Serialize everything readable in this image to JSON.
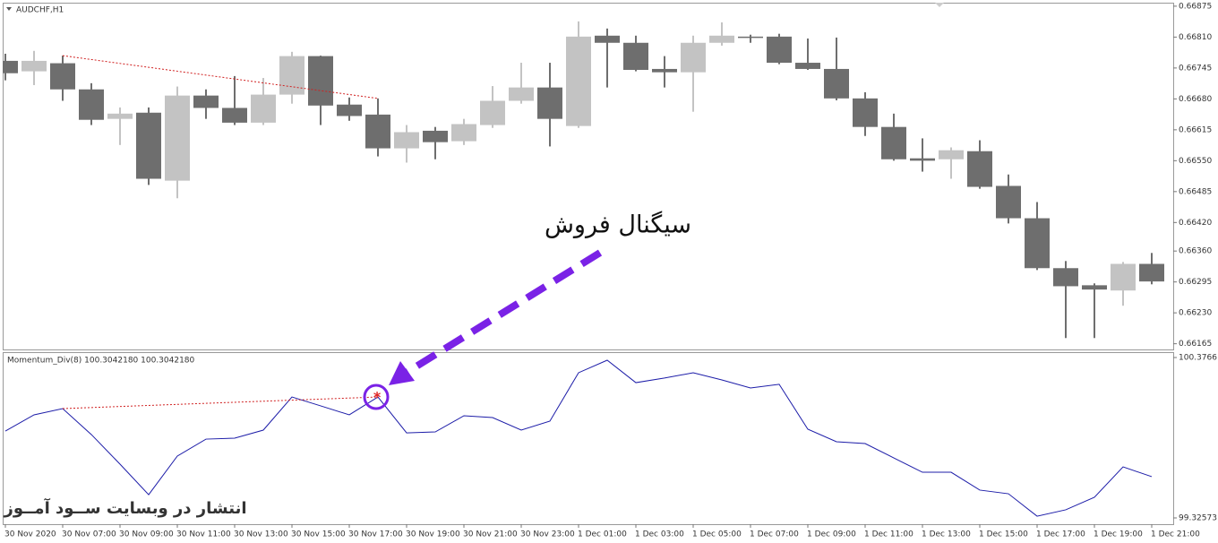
{
  "chart_data": [
    {
      "type": "candlestick",
      "title": "AUDCHF,H1",
      "categories": [
        "30 Nov 2020",
        null,
        "30 Nov 07:00",
        null,
        "30 Nov 09:00",
        null,
        "30 Nov 11:00",
        null,
        "30 Nov 13:00",
        null,
        "30 Nov 15:00",
        null,
        "30 Nov 17:00",
        null,
        "30 Nov 19:00",
        null,
        "30 Nov 21:00",
        null,
        "30 Nov 23:00",
        null,
        "1 Dec 01:00",
        null,
        "1 Dec 03:00",
        null,
        "1 Dec 05:00",
        null,
        "1 Dec 07:00",
        null,
        "1 Dec 09:00",
        null,
        "1 Dec 11:00",
        null,
        "1 Dec 13:00",
        null,
        "1 Dec 15:00",
        null,
        "1 Dec 17:00",
        null,
        "1 Dec 19:00",
        null,
        "1 Dec 21:00"
      ],
      "open": [
        0.6676,
        0.66738,
        0.66755,
        0.667,
        0.66638,
        0.66651,
        0.66508,
        0.66687,
        0.66661,
        0.6663,
        0.66689,
        0.6677,
        0.66668,
        0.66647,
        0.66576,
        0.66613,
        0.66591,
        0.66625,
        0.66676,
        0.66704,
        0.66623,
        0.66813,
        0.66798,
        0.66743,
        0.66736,
        0.66798,
        0.66811,
        0.66811,
        0.66756,
        0.66743,
        0.66681,
        0.66621,
        0.66555,
        0.66553,
        0.6657,
        0.66497,
        0.66429,
        0.66324,
        0.66288,
        0.66277,
        0.66333
      ],
      "high": [
        0.66775,
        0.66781,
        0.66771,
        0.66713,
        0.66662,
        0.66662,
        0.66706,
        0.667,
        0.66728,
        0.66724,
        0.66779,
        0.66771,
        0.66683,
        0.66681,
        0.66625,
        0.66621,
        0.66638,
        0.66707,
        0.66756,
        0.66756,
        0.66843,
        0.66828,
        0.66813,
        0.6677,
        0.66813,
        0.66841,
        0.66815,
        0.66817,
        0.66807,
        0.66809,
        0.66694,
        0.66649,
        0.66597,
        0.66578,
        0.66593,
        0.66521,
        0.66463,
        0.66339,
        0.66292,
        0.66337,
        0.66356
      ],
      "low": [
        0.66719,
        0.66709,
        0.66676,
        0.66625,
        0.66583,
        0.66499,
        0.66471,
        0.66638,
        0.66625,
        0.66625,
        0.6667,
        0.66625,
        0.66634,
        0.66559,
        0.66546,
        0.66553,
        0.66583,
        0.66619,
        0.6667,
        0.6658,
        0.66619,
        0.66704,
        0.66738,
        0.66704,
        0.66653,
        0.66792,
        0.66798,
        0.66753,
        0.66741,
        0.66677,
        0.66602,
        0.6655,
        0.66527,
        0.66512,
        0.66491,
        0.66418,
        0.6632,
        0.66177,
        0.66177,
        0.66245,
        0.6629
      ],
      "close": [
        0.66734,
        0.6676,
        0.667,
        0.66636,
        0.66649,
        0.66512,
        0.66687,
        0.66661,
        0.6663,
        0.66689,
        0.6677,
        0.66666,
        0.66644,
        0.66576,
        0.6661,
        0.66589,
        0.66627,
        0.66676,
        0.66704,
        0.66638,
        0.66811,
        0.66798,
        0.66741,
        0.66736,
        0.66798,
        0.66813,
        0.66809,
        0.66756,
        0.66743,
        0.66681,
        0.66621,
        0.66553,
        0.6655,
        0.66572,
        0.66495,
        0.66429,
        0.66324,
        0.66286,
        0.66279,
        0.66333,
        0.66296
      ],
      "up_color": "#c3c3c3",
      "down_color": "#6e6e6e",
      "ylim": [
        0.66153,
        0.66888
      ],
      "yticks": [
        0.66875,
        {
          "value": 0.6681,
          "label": "0.66810"
        },
        0.66745,
        {
          "value": 0.6668,
          "label": "0.66680"
        },
        0.66615,
        {
          "value": 0.6655,
          "label": "0.66550"
        },
        0.66485,
        {
          "value": 0.6642,
          "label": "0.66420"
        },
        {
          "value": 0.6636,
          "label": "0.66360"
        },
        0.66295,
        {
          "value": 0.6623,
          "label": "0.66230"
        },
        0.66165
      ]
    },
    {
      "type": "line",
      "title": "Momentum_Div(8) 100.3042180 100.3042180",
      "values": [
        99.895,
        100.001,
        100.042,
        99.872,
        99.678,
        99.478,
        99.731,
        99.842,
        99.848,
        99.901,
        100.118,
        100.06,
        100.001,
        100.118,
        99.883,
        99.889,
        99.995,
        99.983,
        99.901,
        99.96,
        100.277,
        100.359,
        100.212,
        100.242,
        100.277,
        100.23,
        100.177,
        100.201,
        99.907,
        99.825,
        99.813,
        99.719,
        99.625,
        99.625,
        99.508,
        99.484,
        99.337,
        99.379,
        99.461,
        99.66,
        99.596
      ],
      "color": "#1c1ca8",
      "ylim": [
        99.32573,
        100.37661
      ],
      "yticks": [
        100.37661,
        99.32573
      ]
    }
  ],
  "annotations": [
    "سیگنال فروش",
    "انتشار در وبسایت ســود آمــوز"
  ]
}
